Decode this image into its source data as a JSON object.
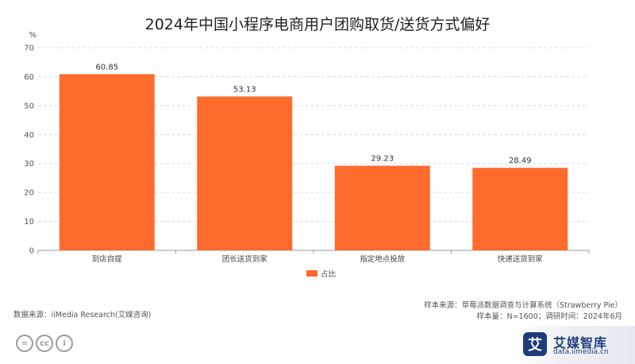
{
  "chart_data": {
    "type": "bar",
    "title": "2024年中国小程序电商用户团购取货/送货方式偏好",
    "unit_label": "%",
    "categories": [
      "到店自提",
      "团长送货到家",
      "指定地点投放",
      "快递送货到家"
    ],
    "series": [
      {
        "name": "占比",
        "values": [
          60.85,
          53.13,
          29.23,
          28.49
        ],
        "color": "#ff6b2c"
      }
    ],
    "yticks": [
      0,
      10,
      20,
      30,
      40,
      50,
      60,
      70
    ],
    "ylim": [
      0,
      70
    ],
    "grid": "horizontal-dashed",
    "legend": "bottom-center"
  },
  "footer": {
    "source_left": "数据来源：iiMedia Research(艾媒咨询)",
    "source_right_1": "样本来源：草莓派数据调查与计算系统（Strawberry Pie）",
    "source_right_2": "样本量：N=1600；调研时间：2024年6月"
  },
  "brand": {
    "logo_char": "艾",
    "name": "艾媒智库",
    "url": "data.iimedia.cn",
    "color": "#1f3b7a"
  },
  "license_icons": [
    {
      "icon": "equals-icon",
      "glyph": "="
    },
    {
      "icon": "cc-icon",
      "glyph": "cc"
    },
    {
      "icon": "person-icon",
      "glyph": "i"
    }
  ]
}
